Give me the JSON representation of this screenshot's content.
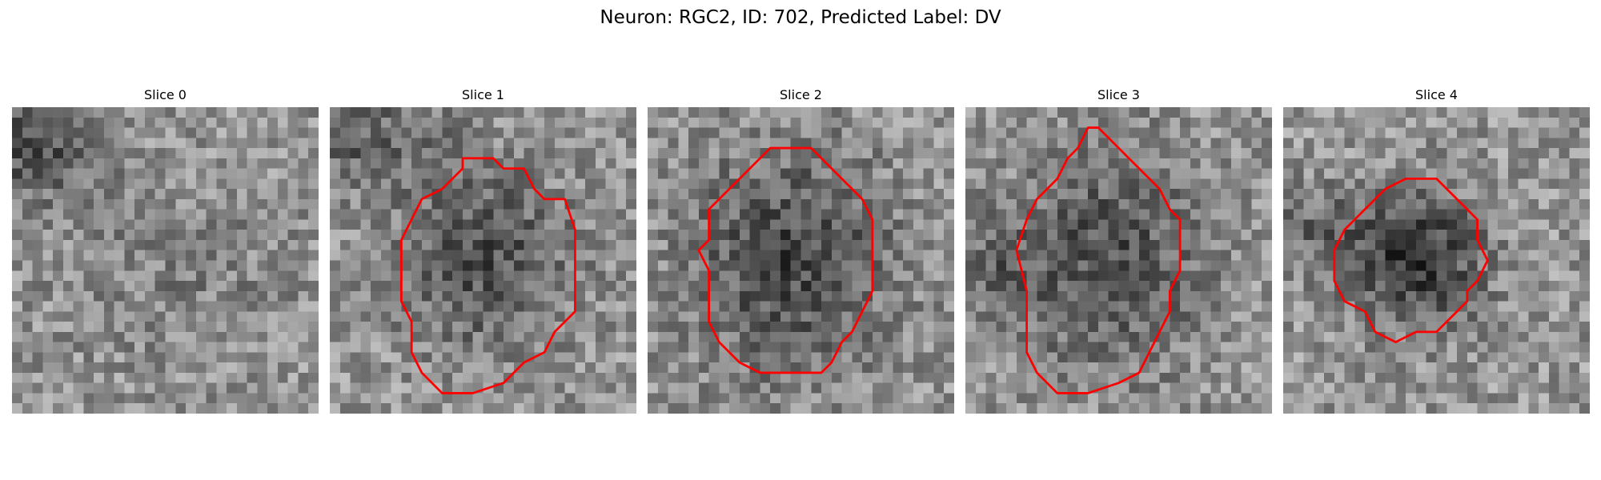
{
  "figure": {
    "title": "Neuron: RGC2, ID: 702, Predicted Label: DV"
  },
  "panels": [
    {
      "label": "Slice 0",
      "contour": null,
      "dark_blobs": [
        {
          "cx": 2,
          "cy": 4,
          "rx": 6,
          "ry": 5,
          "depth": 70
        },
        {
          "cx": 16,
          "cy": 16,
          "rx": 12,
          "ry": 8,
          "depth": 20
        }
      ]
    },
    {
      "label": "Slice 1",
      "contour": [
        [
          13,
          5
        ],
        [
          14,
          5
        ],
        [
          15,
          5
        ],
        [
          16,
          5
        ],
        [
          17,
          6
        ],
        [
          19,
          6
        ],
        [
          20,
          8
        ],
        [
          21,
          9
        ],
        [
          23,
          9
        ],
        [
          24,
          12
        ],
        [
          24,
          20
        ],
        [
          23,
          21
        ],
        [
          22,
          22
        ],
        [
          21,
          24
        ],
        [
          19,
          25
        ],
        [
          17,
          27
        ],
        [
          14,
          28
        ],
        [
          11,
          28
        ],
        [
          9,
          26
        ],
        [
          8,
          24
        ],
        [
          8,
          21
        ],
        [
          7,
          19
        ],
        [
          7,
          13
        ],
        [
          8,
          11
        ],
        [
          9,
          9
        ],
        [
          11,
          8
        ],
        [
          12,
          7
        ],
        [
          13,
          6
        ]
      ],
      "dark_blobs": [
        {
          "cx": 3,
          "cy": 3,
          "rx": 8,
          "ry": 5,
          "depth": 50
        },
        {
          "cx": 15,
          "cy": 15,
          "rx": 8,
          "ry": 8,
          "depth": 70
        }
      ]
    },
    {
      "label": "Slice 2",
      "contour": [
        [
          12,
          4
        ],
        [
          14,
          4
        ],
        [
          16,
          4
        ],
        [
          17,
          5
        ],
        [
          18,
          6
        ],
        [
          20,
          8
        ],
        [
          21,
          9
        ],
        [
          22,
          11
        ],
        [
          22,
          18
        ],
        [
          21,
          20
        ],
        [
          20,
          22
        ],
        [
          19,
          23
        ],
        [
          18,
          25
        ],
        [
          17,
          26
        ],
        [
          11,
          26
        ],
        [
          9,
          25
        ],
        [
          7,
          23
        ],
        [
          6,
          21
        ],
        [
          6,
          16
        ],
        [
          5,
          14
        ],
        [
          6,
          13
        ],
        [
          6,
          10
        ],
        [
          8,
          8
        ],
        [
          10,
          6
        ],
        [
          11,
          5
        ]
      ],
      "dark_blobs": [
        {
          "cx": 14,
          "cy": 15,
          "rx": 9,
          "ry": 10,
          "depth": 80
        }
      ]
    },
    {
      "label": "Slice 3",
      "contour": [
        [
          12,
          2
        ],
        [
          13,
          2
        ],
        [
          14,
          3
        ],
        [
          15,
          4
        ],
        [
          16,
          5
        ],
        [
          17,
          6
        ],
        [
          18,
          7
        ],
        [
          19,
          8
        ],
        [
          20,
          10
        ],
        [
          21,
          11
        ],
        [
          21,
          16
        ],
        [
          20,
          18
        ],
        [
          20,
          20
        ],
        [
          19,
          22
        ],
        [
          18,
          24
        ],
        [
          17,
          26
        ],
        [
          15,
          27
        ],
        [
          12,
          28
        ],
        [
          9,
          28
        ],
        [
          7,
          26
        ],
        [
          6,
          24
        ],
        [
          6,
          18
        ],
        [
          5,
          14
        ],
        [
          6,
          11
        ],
        [
          7,
          9
        ],
        [
          9,
          7
        ],
        [
          10,
          5
        ],
        [
          11,
          4
        ]
      ],
      "dark_blobs": [
        {
          "cx": 14,
          "cy": 15,
          "rx": 9,
          "ry": 10,
          "depth": 70
        },
        {
          "cx": 3,
          "cy": 16,
          "rx": 4,
          "ry": 4,
          "depth": 40
        }
      ]
    },
    {
      "label": "Slice 4",
      "contour": [
        [
          12,
          7
        ],
        [
          13,
          7
        ],
        [
          15,
          7
        ],
        [
          16,
          8
        ],
        [
          17,
          9
        ],
        [
          18,
          10
        ],
        [
          19,
          11
        ],
        [
          19,
          13
        ],
        [
          20,
          15
        ],
        [
          19,
          17
        ],
        [
          18,
          18
        ],
        [
          18,
          19
        ],
        [
          17,
          20
        ],
        [
          16,
          21
        ],
        [
          15,
          22
        ],
        [
          13,
          22
        ],
        [
          11,
          23
        ],
        [
          9,
          22
        ],
        [
          8,
          20
        ],
        [
          6,
          19
        ],
        [
          5,
          17
        ],
        [
          5,
          14
        ],
        [
          6,
          12
        ],
        [
          7,
          11
        ],
        [
          8,
          10
        ],
        [
          10,
          8
        ]
      ],
      "dark_blobs": [
        {
          "cx": 13,
          "cy": 15,
          "rx": 6,
          "ry": 6,
          "depth": 100
        },
        {
          "cx": 3,
          "cy": 12,
          "rx": 6,
          "ry": 4,
          "depth": 40
        }
      ]
    }
  ],
  "colors": {
    "contour": "#ff0000",
    "background": "#ffffff"
  }
}
